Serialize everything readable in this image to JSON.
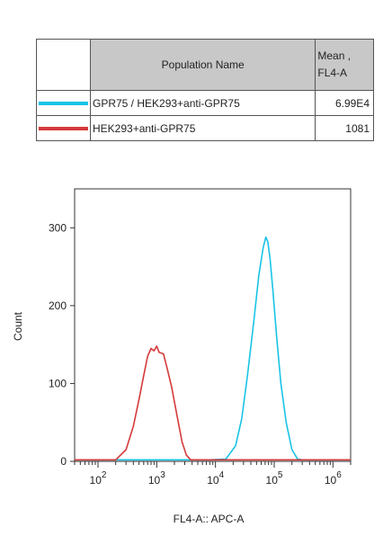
{
  "legend": {
    "header_name": "Population Name",
    "header_mean_line1": "Mean ,",
    "header_mean_line2": "FL4-A",
    "rows": [
      {
        "name": "GPR75 / HEK293+anti-GPR75",
        "mean": "6.99E4",
        "color": "#19c3e6"
      },
      {
        "name": "HEK293+anti-GPR75",
        "mean": "1081",
        "color": "#d43a3a"
      }
    ]
  },
  "chart_data": {
    "type": "line",
    "xlabel": "FL4-A:: APC-A",
    "ylabel": "Count",
    "xscale": "log",
    "xlim": [
      40,
      2000000
    ],
    "ylim": [
      0,
      350
    ],
    "yticks": [
      0,
      100,
      200,
      300
    ],
    "xticks": [
      100,
      1000,
      10000,
      100000,
      1000000
    ],
    "xtick_labels": [
      {
        "base": "10",
        "exp": "2"
      },
      {
        "base": "10",
        "exp": "3"
      },
      {
        "base": "10",
        "exp": "4"
      },
      {
        "base": "10",
        "exp": "5"
      },
      {
        "base": "10",
        "exp": "6"
      }
    ],
    "series": [
      {
        "name": "GPR75 / HEK293+anti-GPR75",
        "color": "#19c3e6",
        "x": [
          40,
          8000,
          15000,
          22000,
          28000,
          35000,
          45000,
          55000,
          65000,
          72000,
          78000,
          85000,
          95000,
          110000,
          130000,
          160000,
          200000,
          250000,
          300000,
          2000000
        ],
        "y": [
          2,
          2,
          3,
          20,
          55,
          110,
          180,
          240,
          275,
          288,
          282,
          260,
          220,
          160,
          100,
          50,
          15,
          3,
          2,
          2
        ]
      },
      {
        "name": "HEK293+anti-GPR75",
        "color": "#d43a3a",
        "x": [
          40,
          200,
          300,
          400,
          500,
          600,
          700,
          800,
          900,
          1000,
          1100,
          1300,
          1500,
          1800,
          2200,
          2700,
          3200,
          3800,
          4500,
          2000000
        ],
        "y": [
          2,
          2,
          15,
          45,
          80,
          110,
          135,
          145,
          142,
          148,
          140,
          138,
          120,
          95,
          60,
          25,
          8,
          2,
          2,
          2
        ]
      }
    ]
  }
}
